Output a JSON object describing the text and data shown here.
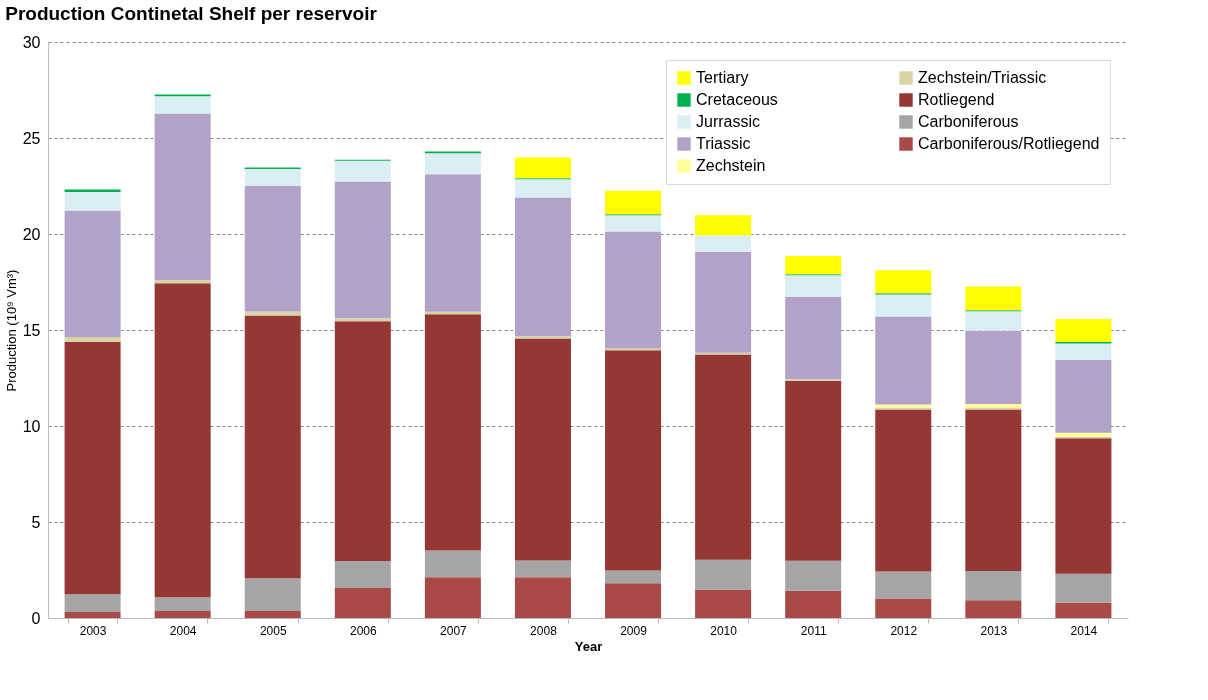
{
  "chart_data": {
    "type": "bar",
    "stacked": true,
    "title": "Production Continetal Shelf per reservoir",
    "xlabel": "Year",
    "ylabel": "Production (10⁹ Vm³)",
    "categories": [
      "2003",
      "2004",
      "2005",
      "2006",
      "2007",
      "2008",
      "2009",
      "2010",
      "2011",
      "2012",
      "2013",
      "2014"
    ],
    "ylim": [
      0,
      30
    ],
    "yticks": [
      0,
      5,
      10,
      15,
      20,
      25,
      30
    ],
    "grid": "y",
    "legend": "top right",
    "series": [
      {
        "name": "Carboniferous/Rotliegend",
        "color": "#a94a48",
        "values": [
          0.31,
          0.37,
          0.37,
          1.56,
          2.12,
          2.12,
          1.81,
          1.48,
          1.42,
          1.02,
          0.93,
          0.79
        ]
      },
      {
        "name": "Carboniferous",
        "color": "#a5a5a5",
        "values": [
          0.93,
          0.71,
          1.7,
          1.41,
          1.39,
          0.87,
          0.66,
          1.56,
          1.56,
          1.4,
          1.52,
          1.51
        ]
      },
      {
        "name": "Rotliegend",
        "color": "#953735",
        "values": [
          13.15,
          16.36,
          13.68,
          12.48,
          12.31,
          11.57,
          11.47,
          10.69,
          9.37,
          8.44,
          8.41,
          7.06
        ]
      },
      {
        "name": "Zechstein/Triassic",
        "color": "#d9d4a4",
        "values": [
          0.25,
          0.17,
          0.21,
          0.16,
          0.13,
          0.11,
          0.09,
          0.09,
          0.09,
          0.11,
          0.11,
          0.08
        ]
      },
      {
        "name": "Zechstein",
        "color": "#ffff99",
        "values": [
          0,
          0,
          0,
          0,
          0,
          0,
          0,
          0,
          0,
          0.15,
          0.17,
          0.21
        ]
      },
      {
        "name": "Triassic",
        "color": "#b3a2c7",
        "values": [
          6.58,
          8.66,
          6.55,
          7.12,
          7.16,
          7.23,
          6.1,
          5.26,
          4.29,
          4.58,
          3.82,
          3.79
        ]
      },
      {
        "name": "Jurrassic",
        "color": "#dbeef4",
        "values": [
          0.97,
          0.91,
          0.88,
          1.08,
          1.1,
          0.95,
          0.85,
          0.85,
          1.12,
          1.15,
          1.02,
          0.86
        ]
      },
      {
        "name": "Cretaceous",
        "color": "#00b050",
        "values": [
          0.13,
          0.09,
          0.08,
          0.06,
          0.09,
          0.06,
          0.05,
          0,
          0.05,
          0.06,
          0.05,
          0.07
        ]
      },
      {
        "name": "Tertiary",
        "color": "#ffff00",
        "values": [
          0,
          0,
          0,
          0,
          0,
          1.07,
          1.22,
          1.05,
          0.95,
          1.2,
          1.23,
          1.2
        ]
      }
    ]
  }
}
